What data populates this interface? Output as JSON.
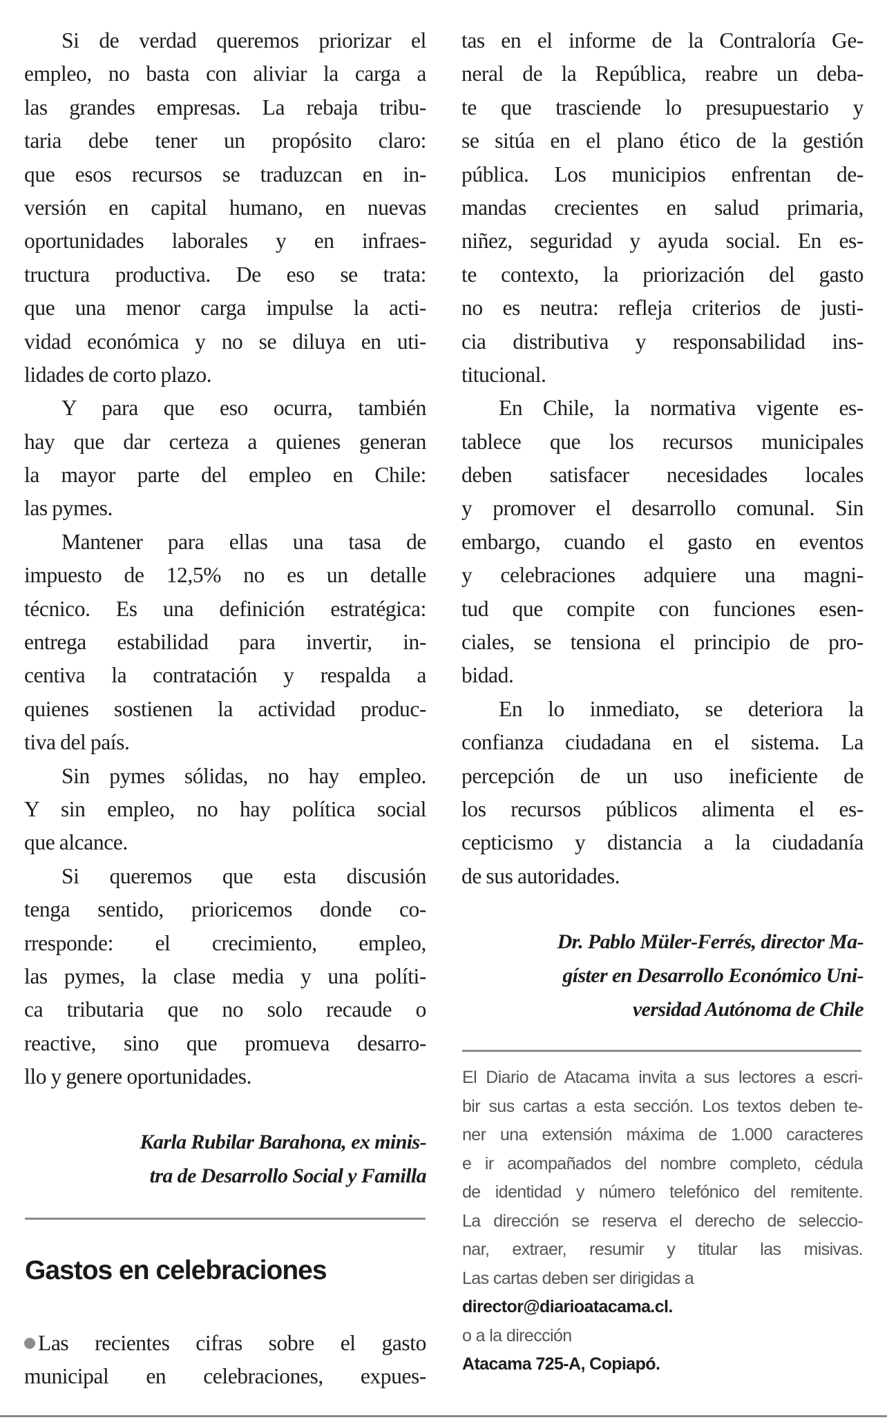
{
  "left_column": {
    "paragraphs": [
      [
        "Si de verdad queremos priorizar el",
        "empleo, no basta con aliviar la carga a",
        "las grandes empresas. La rebaja tribu-",
        "taria debe tener un propósito claro:",
        "que esos recursos se traduzcan en in-",
        "versión en capital humano, en nuevas",
        "oportunidades laborales y en infraes-",
        "tructura productiva. De eso se trata:",
        "que una menor carga impulse la acti-",
        "vidad económica y no se diluya en uti-",
        "lidades de corto plazo."
      ],
      [
        "Y para que eso ocurra, también",
        "hay que dar certeza a quienes generan",
        "la mayor parte del empleo en Chile:",
        "las pymes."
      ],
      [
        "Mantener para ellas una tasa de",
        "impuesto de 12,5% no es un detalle",
        "técnico. Es una definición estratégica:",
        "entrega estabilidad para invertir, in-",
        "centiva la contratación y respalda a",
        "quienes sostienen la actividad produc-",
        "tiva del país."
      ],
      [
        "Sin pymes sólidas, no hay empleo.",
        "Y sin empleo, no hay política social",
        "que alcance."
      ],
      [
        "Si queremos que esta discusión",
        "tenga sentido, prioricemos donde co-",
        "rresponde: el crecimiento, empleo,",
        "las pymes, la clase media y una políti-",
        "ca tributaria que no solo recaude o",
        "reactive, sino que promueva desarro-",
        "llo y genere oportunidades."
      ]
    ],
    "signature": [
      "Karla Rubilar Barahona, ex minis-",
      "tra de Desarrollo Social y Familla"
    ]
  },
  "second_letter": {
    "heading": "Gastos en celebraciones",
    "bullet_icon": "bullet-dot-icon",
    "opening_lines": [
      "Las recientes cifras sobre el gasto",
      "municipal en celebraciones, expues-"
    ]
  },
  "right_column": {
    "paragraphs": [
      [
        "tas en el informe de la Contraloría Ge-",
        "neral de la República, reabre un deba-",
        "te que trasciende lo presupuestario y",
        "se sitúa en el plano ético de la gestión",
        "pública. Los municipios enfrentan de-",
        "mandas crecientes en salud primaria,",
        "niñez, seguridad y ayuda social. En es-",
        "te contexto, la priorización del gasto",
        "no es neutra: refleja criterios de justi-",
        "cia distributiva y responsabilidad ins-",
        "titucional."
      ],
      [
        "En Chile, la normativa vigente es-",
        "tablece que los recursos municipales",
        "deben satisfacer necesidades locales",
        "y promover el desarrollo comunal. Sin",
        "embargo, cuando el gasto en eventos",
        "y celebraciones adquiere una magni-",
        "tud que compite con funciones esen-",
        "ciales, se tensiona el principio de pro-",
        "bidad."
      ],
      [
        "En lo inmediato, se deteriora la",
        "confianza ciudadana en el sistema. La",
        "percepción de un uso ineficiente de",
        "los recursos públicos alimenta el es-",
        "cepticismo y distancia a la ciudadanía",
        "de sus autoridades."
      ]
    ],
    "signature": [
      "Dr. Pablo Müler-Ferrés, director Ma-",
      "gíster en Desarrollo Económico Uni-",
      "versidad Autónoma de Chile"
    ]
  },
  "info_box": {
    "lines": [
      "El Diario de Atacama invita a sus lectores a escri-",
      "bir sus cartas a esta sección. Los textos deben te-",
      "ner una extensión máxima de 1.000 caracteres",
      "e ir acompañados del nombre completo, cédula",
      "de identidad y número telefónico del remitente.",
      "La dirección se reserva el derecho de seleccio-",
      "nar, extraer, resumir y titular las misivas.",
      "Las cartas deben ser dirigidas a"
    ],
    "email": "director@diarioatacama.cl.",
    "address_intro": "o a la dirección",
    "address": "Atacama 725-A, Copiapó."
  }
}
